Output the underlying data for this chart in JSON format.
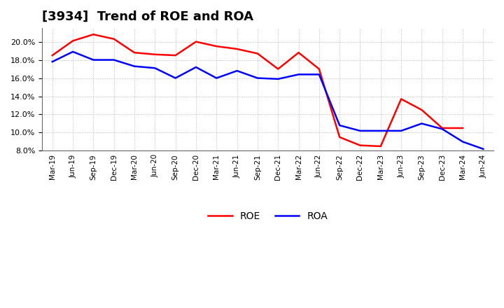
{
  "title": "[3934]  Trend of ROE and ROA",
  "x_labels": [
    "Mar-19",
    "Jun-19",
    "Sep-19",
    "Dec-19",
    "Mar-20",
    "Jun-20",
    "Sep-20",
    "Dec-20",
    "Mar-21",
    "Jun-21",
    "Sep-21",
    "Dec-21",
    "Mar-22",
    "Jun-22",
    "Sep-22",
    "Dec-22",
    "Mar-23",
    "Jun-23",
    "Sep-23",
    "Dec-23",
    "Mar-24",
    "Jun-24"
  ],
  "roe": [
    18.5,
    20.1,
    20.8,
    20.3,
    18.8,
    18.6,
    18.5,
    20.0,
    19.5,
    19.2,
    18.7,
    17.0,
    18.8,
    17.0,
    9.5,
    8.6,
    8.5,
    13.7,
    12.5,
    10.5,
    10.5,
    null
  ],
  "roa": [
    17.8,
    18.9,
    18.0,
    18.0,
    17.3,
    17.1,
    16.0,
    17.2,
    16.0,
    16.8,
    16.0,
    15.9,
    16.4,
    16.4,
    10.8,
    10.2,
    10.2,
    10.2,
    11.0,
    10.4,
    9.0,
    8.2
  ],
  "roe_color": "#ff0000",
  "roa_color": "#0000ff",
  "ylim": [
    8.0,
    21.5
  ],
  "yticks": [
    8.0,
    10.0,
    12.0,
    14.0,
    16.0,
    18.0,
    20.0
  ],
  "background_color": "#ffffff",
  "grid_color": "#888888",
  "title_fontsize": 13,
  "line_width": 1.8
}
